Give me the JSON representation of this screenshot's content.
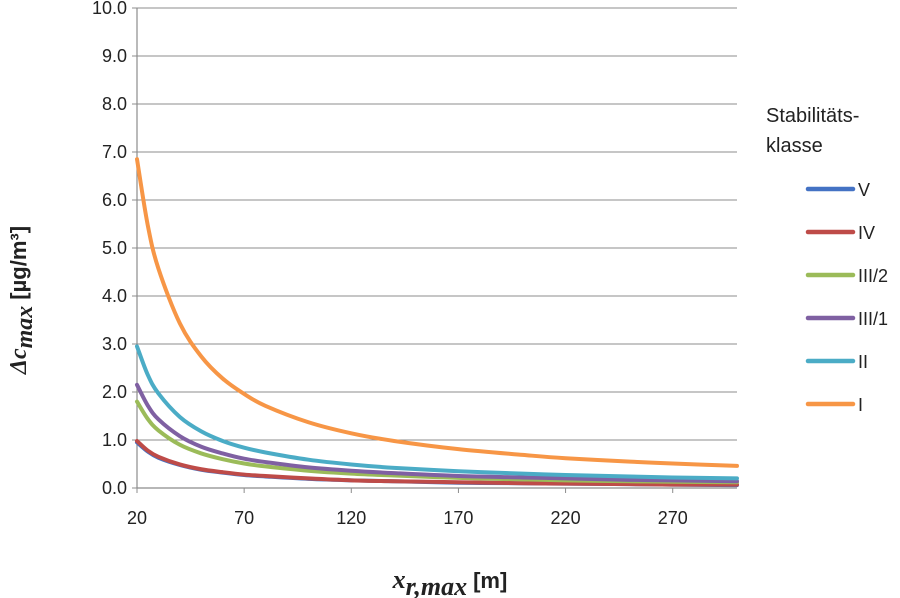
{
  "chart_data": {
    "type": "line",
    "title": "",
    "xlabel": {
      "main": "x",
      "sub": "r,max",
      "unit": "[m]"
    },
    "ylabel": {
      "main": "Δc",
      "sub": "max",
      "unit": "[µg/m³]"
    },
    "xlim": [
      20,
      300
    ],
    "ylim": [
      0,
      10
    ],
    "x_ticks": [
      20,
      70,
      120,
      170,
      220,
      270
    ],
    "x_tick_labels": [
      "20",
      "70",
      "120",
      "170",
      "220",
      "270"
    ],
    "y_ticks": [
      0,
      1,
      2,
      3,
      4,
      5,
      6,
      7,
      8,
      9,
      10
    ],
    "y_tick_labels": [
      "0.0",
      "1.0",
      "2.0",
      "3.0",
      "4.0",
      "5.0",
      "6.0",
      "7.0",
      "8.0",
      "9.0",
      "10.0"
    ],
    "grid": "horizontal",
    "legend": {
      "title_line1": "Stabilitäts-",
      "title_line2": "klasse",
      "placement": "right"
    },
    "x": [
      20,
      25,
      30,
      40,
      50,
      60,
      70,
      80,
      100,
      120,
      140,
      170,
      200,
      220,
      250,
      270,
      300
    ],
    "series": [
      {
        "name": "V",
        "color": "#4472c4",
        "values": [
          0.95,
          0.76,
          0.63,
          0.48,
          0.38,
          0.32,
          0.27,
          0.24,
          0.19,
          0.16,
          0.14,
          0.11,
          0.1,
          0.09,
          0.08,
          0.07,
          0.06
        ]
      },
      {
        "name": "IV",
        "color": "#be4b48",
        "values": [
          0.98,
          0.78,
          0.65,
          0.49,
          0.39,
          0.33,
          0.28,
          0.25,
          0.2,
          0.16,
          0.14,
          0.12,
          0.1,
          0.09,
          0.08,
          0.07,
          0.07
        ]
      },
      {
        "name": "III/2",
        "color": "#9bbb59",
        "values": [
          1.8,
          1.44,
          1.2,
          0.9,
          0.72,
          0.6,
          0.51,
          0.45,
          0.36,
          0.3,
          0.26,
          0.21,
          0.18,
          0.16,
          0.14,
          0.13,
          0.12
        ]
      },
      {
        "name": "III/1",
        "color": "#7f60a2",
        "values": [
          2.15,
          1.72,
          1.43,
          1.08,
          0.86,
          0.72,
          0.61,
          0.54,
          0.43,
          0.36,
          0.31,
          0.25,
          0.22,
          0.2,
          0.17,
          0.16,
          0.14
        ]
      },
      {
        "name": "II",
        "color": "#4bacc6",
        "values": [
          2.95,
          2.36,
          1.97,
          1.48,
          1.18,
          0.98,
          0.84,
          0.74,
          0.59,
          0.49,
          0.42,
          0.35,
          0.3,
          0.27,
          0.24,
          0.22,
          0.2
        ]
      },
      {
        "name": "I",
        "color": "#f79646",
        "values": [
          6.85,
          5.48,
          4.57,
          3.43,
          2.74,
          2.28,
          1.96,
          1.71,
          1.37,
          1.14,
          0.98,
          0.81,
          0.69,
          0.62,
          0.55,
          0.51,
          0.46
        ]
      }
    ]
  }
}
